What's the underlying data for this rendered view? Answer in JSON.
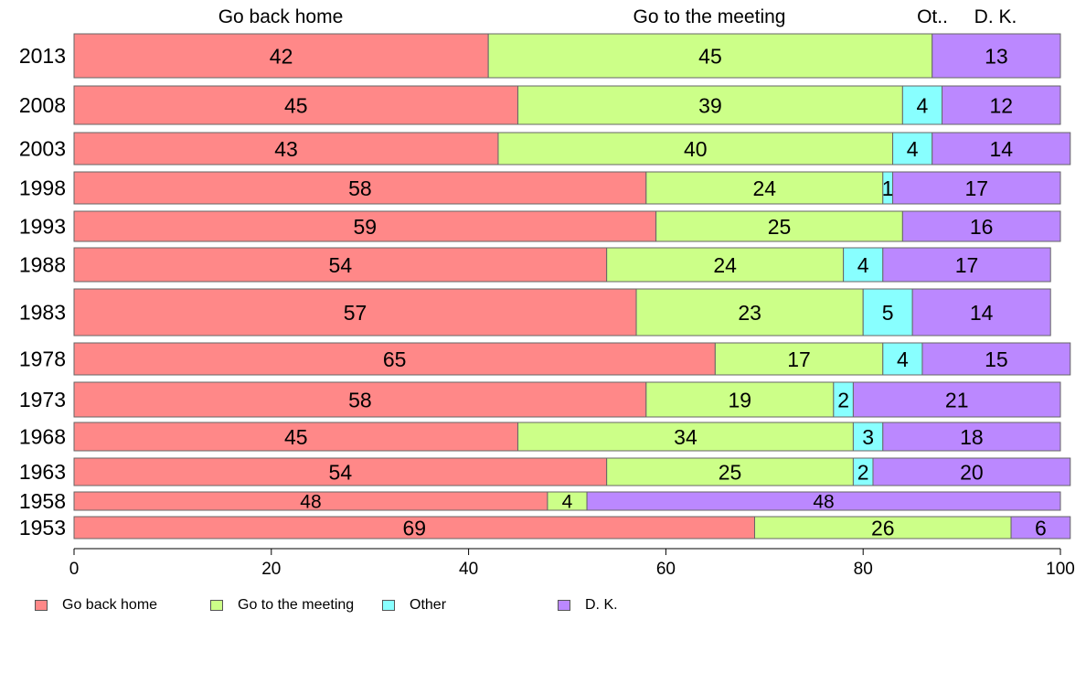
{
  "chart_data": {
    "type": "bar",
    "orientation": "horizontal",
    "stacked": true,
    "categories": [
      "2013",
      "2008",
      "2003",
      "1998",
      "1993",
      "1988",
      "1983",
      "1978",
      "1973",
      "1968",
      "1963",
      "1958",
      "1953"
    ],
    "series": [
      {
        "name": "Go back home",
        "color": "#ff8888",
        "values": [
          42,
          45,
          43,
          58,
          59,
          54,
          57,
          65,
          58,
          45,
          54,
          48,
          69
        ]
      },
      {
        "name": "Go to the meeting",
        "color": "#ccff88",
        "values": [
          45,
          39,
          40,
          24,
          25,
          24,
          23,
          17,
          19,
          34,
          25,
          4,
          26
        ]
      },
      {
        "name": "Other",
        "color": "#88ffff",
        "values": [
          0,
          4,
          4,
          1,
          0,
          4,
          5,
          4,
          2,
          3,
          2,
          0,
          0
        ]
      },
      {
        "name": "D. K.",
        "color": "#bb88ff",
        "values": [
          13,
          12,
          14,
          17,
          16,
          17,
          14,
          15,
          21,
          18,
          20,
          48,
          6
        ]
      }
    ],
    "top_labels": [
      "Go back home",
      "Go to the meeting",
      "Ot..",
      "D. K."
    ],
    "xlim": [
      0,
      100
    ],
    "xticks": [
      "0",
      "20",
      "40",
      "60",
      "80",
      "100"
    ],
    "grid": false,
    "legend_position": "bottom"
  }
}
